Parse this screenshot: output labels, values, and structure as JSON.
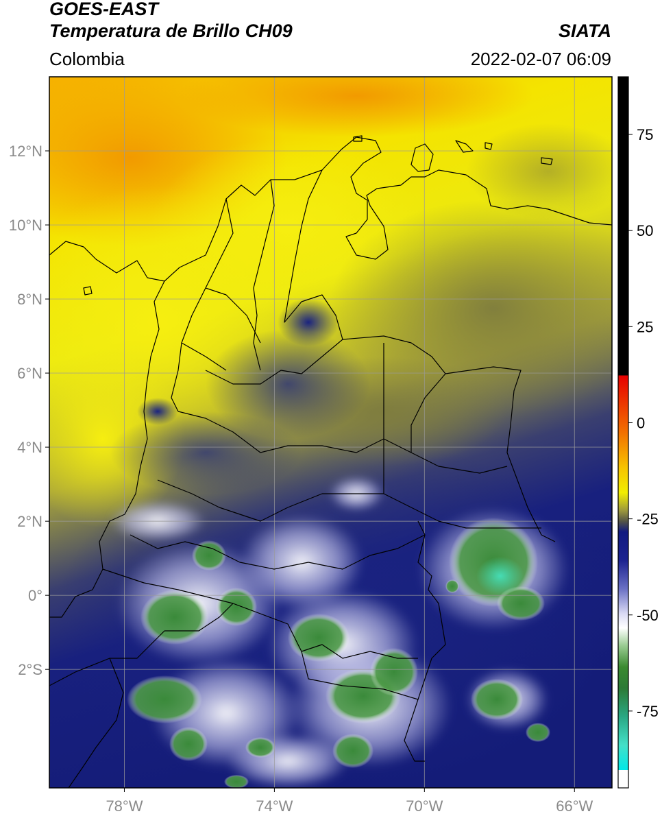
{
  "header": {
    "satellite": "GOES-EAST",
    "product": "Temperatura de Brillo CH09",
    "region": "Colombia",
    "source": "SIATA",
    "datetime": "2022-02-07 06:09"
  },
  "map": {
    "extent": {
      "lon_min": -80,
      "lon_max": -65,
      "lat_min": -5.2,
      "lat_max": 14
    },
    "lon_ticks": [
      {
        "value": -78,
        "label": "78°W"
      },
      {
        "value": -74,
        "label": "74°W"
      },
      {
        "value": -70,
        "label": "70°W"
      },
      {
        "value": -66,
        "label": "66°W"
      }
    ],
    "lat_ticks": [
      {
        "value": 12,
        "label": "12°N"
      },
      {
        "value": 10,
        "label": "10°N"
      },
      {
        "value": 8,
        "label": "8°N"
      },
      {
        "value": 6,
        "label": "6°N"
      },
      {
        "value": 4,
        "label": "4°N"
      },
      {
        "value": 2,
        "label": "2°N"
      },
      {
        "value": 0,
        "label": "0°"
      },
      {
        "value": -2,
        "label": "2°S"
      }
    ],
    "colors": {
      "warm": "#f3a200",
      "yellow": "#f2ea00",
      "olive": "#8c8a3a",
      "navy": "#16207c",
      "white": "#f4f4ff",
      "green": "#3c8c3c",
      "cyan": "#3fcfaa"
    }
  },
  "colorbar": {
    "range": [
      -95,
      90
    ],
    "ticks": [
      {
        "value": 75,
        "label": "75"
      },
      {
        "value": 50,
        "label": "50"
      },
      {
        "value": 25,
        "label": "25"
      },
      {
        "value": 0,
        "label": "0"
      },
      {
        "value": -25,
        "label": "-25"
      },
      {
        "value": -50,
        "label": "-50"
      },
      {
        "value": -75,
        "label": "-75"
      }
    ]
  }
}
